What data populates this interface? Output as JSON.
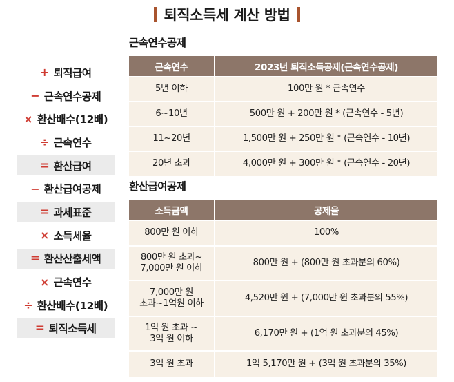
{
  "title": "퇴직소득세 계산 방법",
  "formula": [
    {
      "op": "+",
      "label": "퇴직급여",
      "highlight": false
    },
    {
      "op": "−",
      "label": "근속연수공제",
      "highlight": false
    },
    {
      "op": "×",
      "label": "환산배수(12배)",
      "highlight": false
    },
    {
      "op": "÷",
      "label": "근속연수",
      "highlight": false
    },
    {
      "op": "=",
      "label": "환산급여",
      "highlight": true
    },
    {
      "op": "−",
      "label": "환산급여공제",
      "highlight": false
    },
    {
      "op": "=",
      "label": "과세표준",
      "highlight": true
    },
    {
      "op": "×",
      "label": "소득세율",
      "highlight": false
    },
    {
      "op": "=",
      "label": "환산산출세액",
      "highlight": true
    },
    {
      "op": "×",
      "label": "근속연수",
      "highlight": false
    },
    {
      "op": "÷",
      "label": "환산배수(12배)",
      "highlight": false
    },
    {
      "op": "=",
      "label": "퇴직소득세",
      "highlight": true
    }
  ],
  "colors": {
    "operator": "#cf3b32",
    "header_bg": "#8d7669",
    "cell_bg": "#f7f0e6",
    "title_bar": "#a9542e"
  },
  "service_deduction": {
    "section_title": "근속연수공제",
    "headers": [
      "근속연수",
      "2023년 퇴직소득공제(근속연수공제)"
    ],
    "rows": [
      [
        "5년 이하",
        "100만 원 * 근속연수"
      ],
      [
        "6~10년",
        "500만 원 + 200만 원 * (근속연수 - 5년)"
      ],
      [
        "11~20년",
        "1,500만 원 + 250만 원 * (근속연수 - 10년)"
      ],
      [
        "20년 초과",
        "4,000만 원 + 300만 원 * (근속연수 - 20년)"
      ]
    ]
  },
  "converted_deduction": {
    "section_title": "환산급여공제",
    "headers": [
      "소득금액",
      "공제율"
    ],
    "rows": [
      [
        [
          "800만 원 이하"
        ],
        "100%"
      ],
      [
        [
          "800만 원 초과~",
          "7,000만 원 이하"
        ],
        "800만 원 + (800만 원 초과분의 60%)"
      ],
      [
        [
          "7,000만 원",
          "초과~1억원 이하"
        ],
        "4,520만 원 + (7,000만 원 초과분의 55%)"
      ],
      [
        [
          "1억 원 초과 ~",
          "3억  원 이하"
        ],
        "6,170만 원 + (1억 원 초과분의 45%)"
      ],
      [
        [
          "3억 원 초과"
        ],
        "1억 5,170만 원 + (3억 원 초과분의 35%)"
      ]
    ]
  }
}
